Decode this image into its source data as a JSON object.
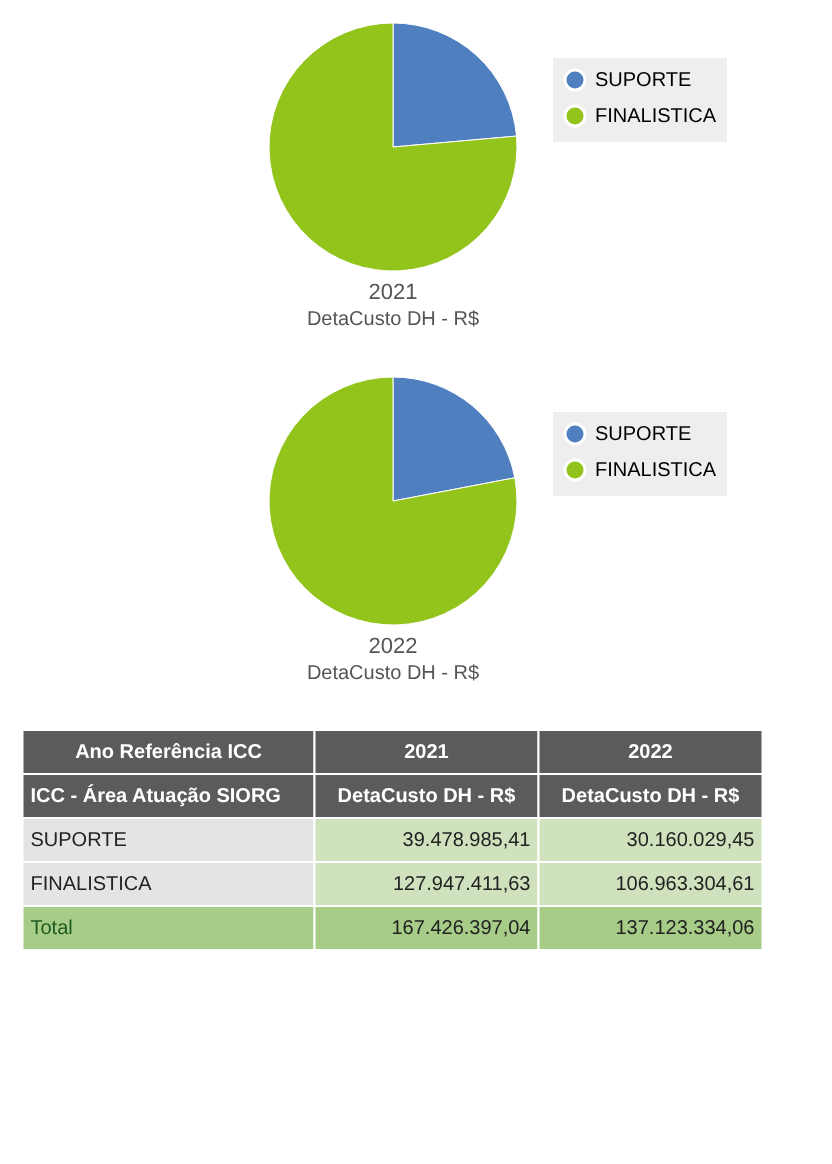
{
  "chart_data": [
    {
      "type": "pie",
      "title": "2021",
      "subtitle": "DetaCusto DH - R$",
      "categories": [
        "SUPORTE",
        "FINALISTICA"
      ],
      "values": [
        23.6,
        76.4
      ],
      "colors": [
        "#4f7fbf",
        "#93c41c"
      ],
      "legend": "right"
    },
    {
      "type": "pie",
      "title": "2022",
      "subtitle": "DetaCusto DH - R$",
      "categories": [
        "SUPORTE",
        "FINALISTICA"
      ],
      "values": [
        22.0,
        78.0
      ],
      "colors": [
        "#4f7fbf",
        "#93c41c"
      ],
      "legend": "right"
    },
    {
      "type": "other",
      "annotations": [
        "Ano Referência ICC",
        "2021",
        "2022",
        "ICC - Área Atuação SIORG",
        "DetaCusto DH - R$",
        "DetaCusto DH - R$",
        "SUPORTE",
        "39.478.985,41",
        "30.160.029,45",
        "FINALISTICA",
        "127.947.411,63",
        "106.963.304,61",
        "Total",
        "167.426.397,04",
        "137.123.334,06"
      ]
    }
  ]
}
